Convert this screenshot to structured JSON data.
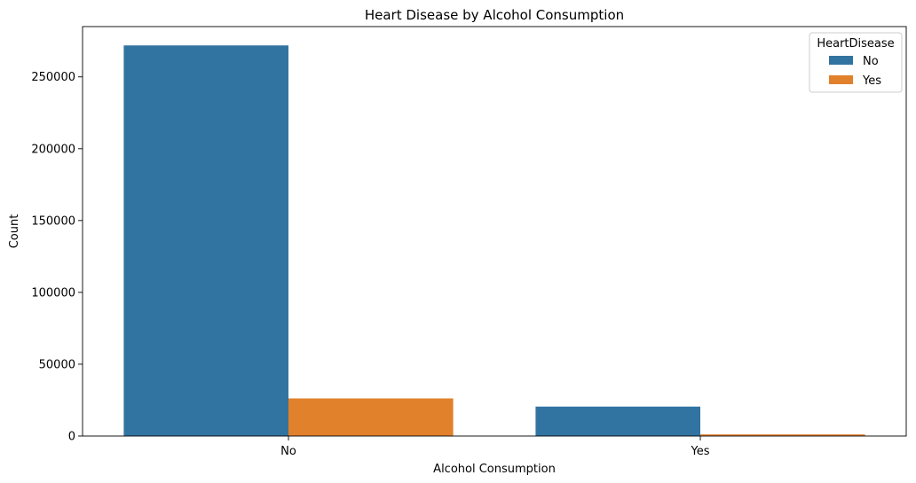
{
  "chart_data": {
    "type": "bar",
    "title": "Heart Disease by Alcohol Consumption",
    "xlabel": "Alcohol Consumption",
    "ylabel": "Count",
    "categories": [
      "No",
      "Yes"
    ],
    "series": [
      {
        "name": "No",
        "color": "#3274a1",
        "values": [
          271900,
          20500
        ]
      },
      {
        "name": "Yes",
        "color": "#e1812c",
        "values": [
          26200,
          1150
        ]
      }
    ],
    "ylim": [
      0,
      285000
    ],
    "yticks": [
      0,
      50000,
      100000,
      150000,
      200000,
      250000
    ],
    "grid": false,
    "legend": {
      "title": "HeartDisease",
      "position": "top-right"
    }
  }
}
